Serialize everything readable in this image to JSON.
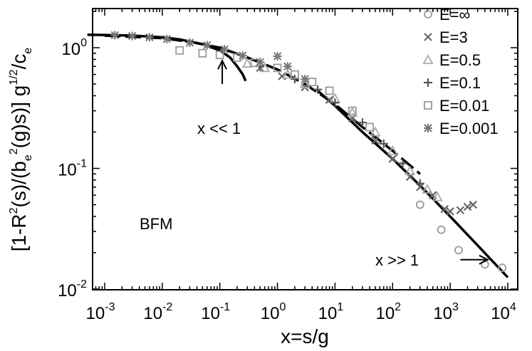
{
  "chart_data": {
    "type": "scatter",
    "title": "",
    "xlabel": "x=s/g",
    "ylabel_parts": {
      "pre": "[1-R",
      "sup1": "2",
      "mid1": "(s)/(b",
      "sub1": "e",
      "sup2": "2",
      "mid2": "(g)s)] g",
      "sup3": "1/2",
      "mid3": "/c",
      "sub2": "e"
    },
    "xscale": "log",
    "yscale": "log",
    "xlim": [
      0.0005,
      10000
    ],
    "ylim": [
      0.01,
      2
    ],
    "grid": false,
    "legend_position": "top-right",
    "x_ticks": [
      {
        "base": "10",
        "exp": "-3",
        "value": 0.001
      },
      {
        "base": "10",
        "exp": "-2",
        "value": 0.01
      },
      {
        "base": "10",
        "exp": "-1",
        "value": 0.1
      },
      {
        "base": "10",
        "exp": "0",
        "value": 1
      },
      {
        "base": "10",
        "exp": "1",
        "value": 10
      },
      {
        "base": "10",
        "exp": "2",
        "value": 100
      },
      {
        "base": "10",
        "exp": "3",
        "value": 1000
      },
      {
        "base": "10",
        "exp": "4",
        "value": 10000
      }
    ],
    "y_ticks": [
      {
        "base": "10",
        "exp": "0",
        "value": 1
      },
      {
        "base": "10",
        "exp": "-1",
        "value": 0.1
      },
      {
        "base": "10",
        "exp": "-2",
        "value": 0.01
      }
    ],
    "annotations": [
      {
        "text": "x << 1",
        "arrow_from": [
          0.11,
          0.5
        ],
        "arrow_to": [
          0.11,
          0.78
        ]
      },
      {
        "text": "x >> 1",
        "arrow_from": [
          1500,
          0.0175
        ],
        "arrow_to": [
          4500,
          0.0175
        ]
      },
      {
        "text": "BFM",
        "at": [
          0.011,
          0.027
        ]
      }
    ],
    "series": [
      {
        "name": "E=∞",
        "marker": "circle",
        "color": "#999999",
        "points": [
          [
            300,
            0.05
          ],
          [
            700,
            0.031
          ],
          [
            1400,
            0.021
          ],
          [
            4000,
            0.016
          ],
          [
            8000,
            0.015
          ]
        ]
      },
      {
        "name": "E=3",
        "marker": "x",
        "color": "#666666",
        "points": [
          [
            0.5,
            0.68
          ],
          [
            1.2,
            0.58
          ],
          [
            3,
            0.47
          ],
          [
            8,
            0.37
          ],
          [
            20,
            0.26
          ],
          [
            50,
            0.17
          ],
          [
            100,
            0.12
          ],
          [
            200,
            0.085
          ],
          [
            300,
            0.07
          ],
          [
            500,
            0.06
          ],
          [
            800,
            0.046
          ],
          [
            1000,
            0.044
          ],
          [
            1500,
            0.045
          ],
          [
            2000,
            0.048
          ],
          [
            2500,
            0.05
          ]
        ]
      },
      {
        "name": "E=0.5",
        "marker": "triangle",
        "color": "#aaaaaa",
        "points": [
          [
            0.3,
            0.74
          ],
          [
            0.6,
            0.68
          ],
          [
            1.5,
            0.6
          ],
          [
            3,
            0.5
          ],
          [
            10,
            0.38
          ],
          [
            20,
            0.29
          ],
          [
            50,
            0.2
          ],
          [
            100,
            0.14
          ],
          [
            200,
            0.095
          ],
          [
            400,
            0.067
          ],
          [
            600,
            0.058
          ]
        ]
      },
      {
        "name": "E=0.1",
        "marker": "plus",
        "color": "#555555",
        "points": [
          [
            0.5,
            0.7
          ],
          [
            2,
            0.55
          ],
          [
            5,
            0.45
          ],
          [
            10,
            0.35
          ],
          [
            30,
            0.24
          ],
          [
            70,
            0.16
          ],
          [
            150,
            0.11
          ],
          [
            300,
            0.075
          ]
        ]
      },
      {
        "name": "E=0.01",
        "marker": "square",
        "color": "#999999",
        "points": [
          [
            0.02,
            0.95
          ],
          [
            0.05,
            0.9
          ],
          [
            0.1,
            0.87
          ],
          [
            0.2,
            0.83
          ],
          [
            0.4,
            0.75
          ],
          [
            1,
            0.68
          ],
          [
            2,
            0.6
          ],
          [
            4,
            0.52
          ],
          [
            8,
            0.44
          ],
          [
            20,
            0.3
          ],
          [
            40,
            0.22
          ]
        ]
      },
      {
        "name": "E=0.001",
        "marker": "asterisk",
        "color": "#777777",
        "points": [
          [
            0.0015,
            1.27
          ],
          [
            0.003,
            1.25
          ],
          [
            0.006,
            1.22
          ],
          [
            0.012,
            1.18
          ],
          [
            0.03,
            1.1
          ],
          [
            0.06,
            1.05
          ],
          [
            0.12,
            0.97
          ],
          [
            0.25,
            0.86
          ],
          [
            0.5,
            0.76
          ],
          [
            1.0,
            0.85
          ],
          [
            1.5,
            0.7
          ],
          [
            3,
            0.55
          ]
        ]
      }
    ],
    "curves": [
      {
        "style": "solid",
        "points": [
          [
            0.0005,
            1.28
          ],
          [
            0.001,
            1.275
          ],
          [
            0.003,
            1.26
          ],
          [
            0.01,
            1.22
          ],
          [
            0.02,
            1.17
          ],
          [
            0.05,
            1.07
          ],
          [
            0.1,
            0.95
          ],
          [
            0.15,
            0.83
          ],
          [
            0.2,
            0.7
          ],
          [
            0.25,
            0.6
          ],
          [
            0.28,
            0.53
          ]
        ]
      },
      {
        "style": "dashed",
        "points": [
          [
            0.001,
            1.26
          ],
          [
            0.01,
            1.2
          ],
          [
            0.03,
            1.12
          ],
          [
            0.1,
            1.0
          ],
          [
            0.3,
            0.83
          ],
          [
            1,
            0.66
          ],
          [
            3,
            0.5
          ],
          [
            10,
            0.34
          ],
          [
            30,
            0.22
          ],
          [
            100,
            0.14
          ],
          [
            300,
            0.09
          ]
        ]
      },
      {
        "style": "solid",
        "points": [
          [
            5,
            0.44
          ],
          [
            10,
            0.33
          ],
          [
            30,
            0.2
          ],
          [
            100,
            0.12
          ],
          [
            300,
            0.072
          ],
          [
            1000,
            0.04
          ],
          [
            3000,
            0.023
          ],
          [
            10000,
            0.0125
          ]
        ]
      }
    ]
  }
}
